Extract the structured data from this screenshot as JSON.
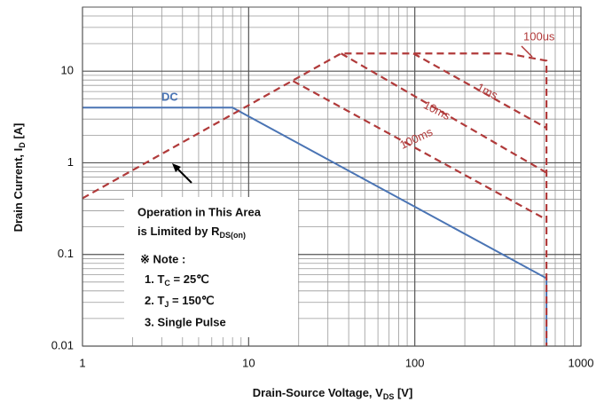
{
  "chart_data": {
    "type": "line",
    "x_label": {
      "text": "Drain-Source Voltage, V",
      "sub": "DS",
      "rest": " [V]"
    },
    "y_label": {
      "text": "Drain Current, I",
      "sub": "D",
      "rest": " [A]"
    },
    "xscale": "log",
    "yscale": "log",
    "grid": true,
    "xlim": [
      1,
      1000
    ],
    "ylim": [
      0.01,
      50
    ],
    "xticks": [
      1,
      10,
      100,
      1000
    ],
    "yticks": [
      0.01,
      0.1,
      1,
      10
    ],
    "series": [
      {
        "name": "DC",
        "color": "#4a74b4",
        "dashed": false,
        "x": [
          1,
          8,
          620,
          620
        ],
        "values": [
          4,
          4,
          0.055,
          0.01
        ]
      },
      {
        "name": "100us",
        "color": "#b03a3a",
        "dashed": true,
        "x": [
          1,
          36,
          360,
          620,
          620
        ],
        "values": [
          0.41,
          15.6,
          15.6,
          13,
          0.01
        ]
      },
      {
        "name": "1ms",
        "color": "#b03a3a",
        "dashed": true,
        "x": [
          98,
          620
        ],
        "values": [
          15.6,
          2.4
        ]
      },
      {
        "name": "10ms",
        "color": "#b03a3a",
        "dashed": true,
        "x": [
          36,
          620
        ],
        "values": [
          15.6,
          0.78
        ]
      },
      {
        "name": "100ms",
        "color": "#b03a3a",
        "dashed": true,
        "x": [
          18.5,
          620
        ],
        "values": [
          7.8,
          0.24
        ]
      }
    ],
    "note_box": {
      "line1": "Operation in This Area",
      "line2": "is Limited by R",
      "line2_sub": "DS(on)",
      "note": "※ Note :",
      "item1": "1. T",
      "item1_sub": "C",
      "item1_rest": " = 25℃",
      "item2": "2. T",
      "item2_sub": "J",
      "item2_rest": " = 150℃",
      "item3": "3. Single Pulse"
    }
  }
}
